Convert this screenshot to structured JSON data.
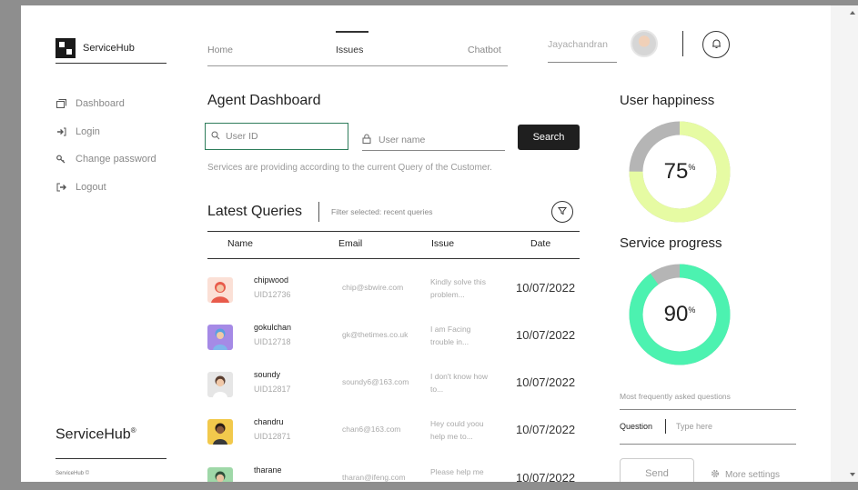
{
  "app": {
    "name": "ServiceHub",
    "footer_brand": "ServiceHub",
    "footer_mark": "®",
    "footer_small": "ServiceHub ©"
  },
  "sidebar": {
    "items": [
      {
        "label": "Dashboard",
        "icon": "dashboard-icon"
      },
      {
        "label": "Login",
        "icon": "login-icon"
      },
      {
        "label": "Change password",
        "icon": "key-icon"
      },
      {
        "label": "Logout",
        "icon": "logout-icon"
      }
    ]
  },
  "topnav": {
    "tabs": [
      "Home",
      "Issues",
      "Chatbot"
    ],
    "active_tab": "Issues",
    "user_name": "Jayachandran"
  },
  "dashboard": {
    "title": "Agent Dashboard",
    "user_id_placeholder": "User ID",
    "user_name_placeholder": "User name",
    "search_label": "Search",
    "note": "Services are providing according to the current Query of the Customer."
  },
  "queries": {
    "title": "Latest Queries",
    "filter_text": "Filter selected: recent queries",
    "columns": [
      "Name",
      "Email",
      "Issue",
      "Date"
    ],
    "rows": [
      {
        "name": "chipwood",
        "uid": "UID12736",
        "email": "chip@sbwire.com",
        "issue1": "Kindly solve this",
        "issue2": "problem...",
        "date": "10/07/2022",
        "avatar_color": "#e85b4b"
      },
      {
        "name": "gokulchan",
        "uid": "UID12718",
        "email": "gk@thetimes.co.uk",
        "issue1": "I am Facing",
        "issue2": "trouble in...",
        "date": "10/07/2022",
        "avatar_color": "#a58ae6"
      },
      {
        "name": "soundy",
        "uid": "UID12817",
        "email": "soundy6@163.com",
        "issue1": "I don't know how",
        "issue2": "to...",
        "date": "10/07/2022",
        "avatar_color": "#d9d9d9"
      },
      {
        "name": "chandru",
        "uid": "UID12871",
        "email": "chan6@163.com",
        "issue1": "Hey could yoou",
        "issue2": "help me to...",
        "date": "10/07/2022",
        "avatar_color": "#f2c94c"
      },
      {
        "name": "tharane",
        "uid": "",
        "email": "tharan@ifeng.com",
        "issue1": "Please help me",
        "issue2": "",
        "date": "10/07/2022",
        "avatar_color": "#9fd8a8"
      }
    ]
  },
  "right_panel": {
    "happiness": {
      "title": "User happiness",
      "value": 75,
      "display": "75",
      "unit": "%",
      "color": "#e6fba3",
      "track": "#b5b5b5"
    },
    "progress": {
      "title": "Service progress",
      "value": 90,
      "display": "90",
      "unit": "%",
      "color": "#4cf2b0",
      "track": "#b5b5b5"
    },
    "faq_label": "Most frequently asked questions",
    "question_label": "Question",
    "question_placeholder": "Type here",
    "send_label": "Send",
    "more_settings_label": "More settings"
  }
}
